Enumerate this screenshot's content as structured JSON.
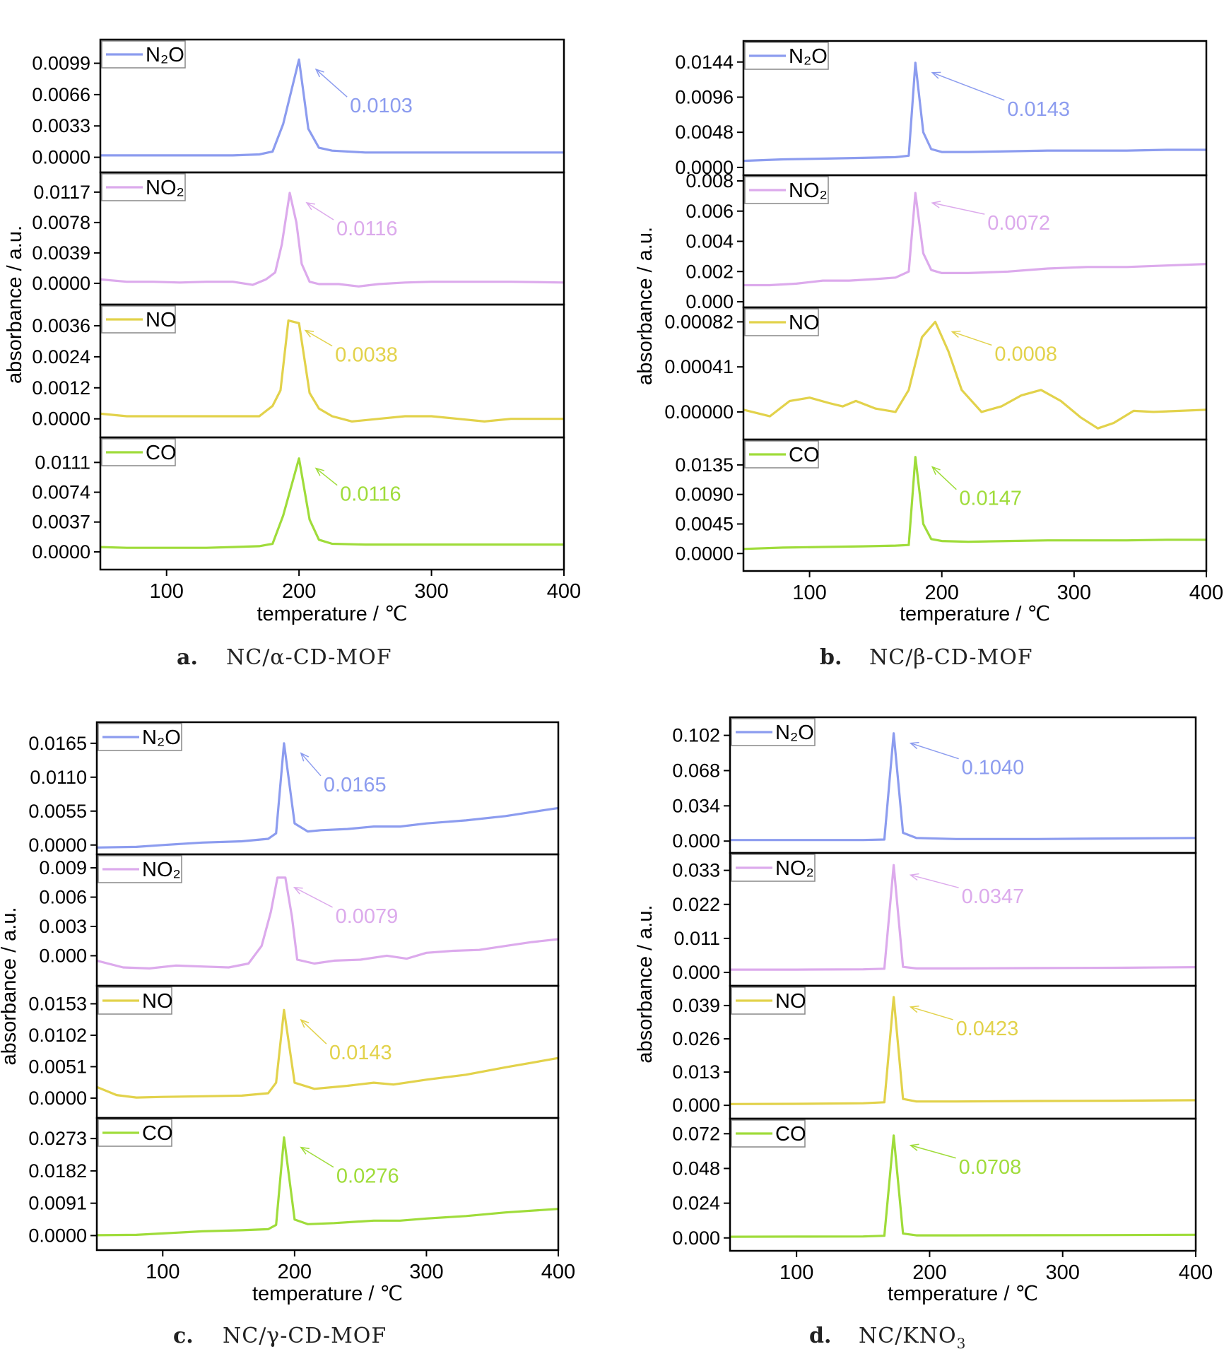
{
  "chart_data": [
    {
      "type": "line",
      "caption": {
        "letter": "a.",
        "text": "NC/α-CD-MOF"
      },
      "xlabel": "temperature / ℃",
      "ylabel": "absorbance / a.u.",
      "xlim": [
        50,
        400
      ],
      "xticks": [
        100,
        200,
        300,
        400
      ],
      "series": [
        {
          "name": "N₂O",
          "color": "#8c9cef",
          "ylim": [
            -0.001,
            0.0118
          ],
          "yticks": [
            "0.0099",
            "0.0066",
            "0.0033",
            "0.0000"
          ],
          "peak_label": "0.0103",
          "x": [
            50,
            70,
            90,
            110,
            130,
            150,
            170,
            180,
            188,
            200,
            207,
            215,
            225,
            250,
            300,
            350,
            400
          ],
          "y": [
            0.0002,
            0.0002,
            0.0002,
            0.0002,
            0.0002,
            0.0002,
            0.0003,
            0.0006,
            0.0035,
            0.0103,
            0.003,
            0.001,
            0.0007,
            0.0005,
            0.0005,
            0.0005,
            0.0005
          ]
        },
        {
          "name": "NO₂",
          "color": "#dcaaec",
          "ylim": [
            -0.002,
            0.0135
          ],
          "yticks": [
            "0.0117",
            "0.0078",
            "0.0039",
            "0.0000"
          ],
          "peak_label": "0.0116",
          "x": [
            50,
            70,
            90,
            110,
            130,
            150,
            165,
            175,
            182,
            187,
            193,
            198,
            202,
            208,
            215,
            230,
            245,
            260,
            280,
            300,
            330,
            360,
            400
          ],
          "y": [
            0.0005,
            0.0002,
            0.0002,
            0.0001,
            0.0002,
            0.0002,
            -0.0002,
            0.0005,
            0.0014,
            0.005,
            0.0116,
            0.0078,
            0.0025,
            0.0002,
            -0.0001,
            -0.0001,
            -0.0004,
            -0.0001,
            0.0001,
            0.0002,
            0.0002,
            0.0002,
            0.0001
          ]
        },
        {
          "name": "NO",
          "color": "#e2d24b",
          "ylim": [
            -0.0005,
            0.0042
          ],
          "yticks": [
            "0.0036",
            "0.0024",
            "0.0012",
            "0.0000"
          ],
          "peak_label": "0.0038",
          "x": [
            50,
            70,
            90,
            110,
            130,
            150,
            170,
            180,
            186,
            192,
            200,
            208,
            215,
            225,
            240,
            260,
            280,
            300,
            320,
            340,
            360,
            380,
            400
          ],
          "y": [
            0.0002,
            0.0001,
            0.0001,
            0.0001,
            0.0001,
            0.0001,
            0.0001,
            0.0005,
            0.0011,
            0.0038,
            0.0037,
            0.001,
            0.0004,
            0.0001,
            -0.0001,
            0.0,
            0.0001,
            0.0001,
            0.0,
            -0.0001,
            0.0,
            0.0,
            0.0
          ]
        },
        {
          "name": "CO",
          "color": "#9fdc3a",
          "ylim": [
            -0.0015,
            0.0135
          ],
          "yticks": [
            "0.0111",
            "0.0074",
            "0.0037",
            "0.0000"
          ],
          "peak_label": "0.0116",
          "x": [
            50,
            70,
            90,
            110,
            130,
            150,
            170,
            180,
            188,
            200,
            208,
            215,
            225,
            250,
            300,
            350,
            400
          ],
          "y": [
            0.0006,
            0.0005,
            0.0005,
            0.0005,
            0.0005,
            0.0006,
            0.0007,
            0.001,
            0.0045,
            0.0116,
            0.004,
            0.0015,
            0.001,
            0.0009,
            0.0009,
            0.0009,
            0.0009
          ]
        }
      ]
    },
    {
      "type": "line",
      "caption": {
        "letter": "b.",
        "text": "NC/β-CD-MOF"
      },
      "xlabel": "temperature / ℃",
      "ylabel": "absorbance / a.u.",
      "xlim": [
        50,
        400
      ],
      "xticks": [
        100,
        200,
        300,
        400
      ],
      "series": [
        {
          "name": "N₂O",
          "color": "#8c9cef",
          "ylim": [
            -0.0003,
            0.0165
          ],
          "yticks": [
            "0.0144",
            "0.0096",
            "0.0048",
            "0.0000"
          ],
          "peak_label": "0.0143",
          "x": [
            50,
            80,
            110,
            140,
            165,
            175,
            180,
            186,
            192,
            200,
            220,
            250,
            280,
            310,
            340,
            370,
            400
          ],
          "y": [
            0.0009,
            0.0011,
            0.0012,
            0.0013,
            0.0014,
            0.0016,
            0.0143,
            0.0048,
            0.0025,
            0.0021,
            0.0021,
            0.0022,
            0.0023,
            0.0023,
            0.0023,
            0.0024,
            0.0024
          ]
        },
        {
          "name": "NO₂",
          "color": "#dcaaec",
          "ylim": [
            0.0,
            0.008
          ],
          "yticks": [
            "0.008",
            "0.006",
            "0.004",
            "0.002",
            "0.000"
          ],
          "peak_label": "0.0072",
          "x": [
            50,
            70,
            90,
            110,
            130,
            150,
            165,
            175,
            180,
            186,
            192,
            200,
            220,
            250,
            280,
            310,
            340,
            370,
            400
          ],
          "y": [
            0.0011,
            0.0011,
            0.0012,
            0.0014,
            0.0014,
            0.0015,
            0.0016,
            0.002,
            0.0072,
            0.0032,
            0.0021,
            0.0019,
            0.0019,
            0.002,
            0.0022,
            0.0023,
            0.0023,
            0.0024,
            0.0025
          ]
        },
        {
          "name": "NO",
          "color": "#e2d24b",
          "ylim": [
            -0.0002,
            0.0009
          ],
          "yticks": [
            "0.00082",
            "0.00041",
            "0.00000"
          ],
          "peak_label": "0.0008",
          "x": [
            50,
            70,
            85,
            100,
            115,
            125,
            135,
            150,
            165,
            175,
            185,
            195,
            205,
            215,
            230,
            245,
            260,
            275,
            290,
            305,
            318,
            330,
            345,
            360,
            380,
            400
          ],
          "y": [
            2e-05,
            -4e-05,
            0.0001,
            0.00013,
            8e-05,
            5e-05,
            0.0001,
            3e-05,
            0.0,
            0.0002,
            0.00068,
            0.00082,
            0.00055,
            0.0002,
            0.0,
            5e-05,
            0.00015,
            0.0002,
            0.0001,
            -5e-05,
            -0.00015,
            -0.0001,
            1e-05,
            0.0,
            1e-05,
            2e-05
          ]
        },
        {
          "name": "CO",
          "color": "#9fdc3a",
          "ylim": [
            -0.0018,
            0.0165
          ],
          "yticks": [
            "0.0135",
            "0.0090",
            "0.0045",
            "0.0000"
          ],
          "peak_label": "0.0147",
          "x": [
            50,
            80,
            110,
            140,
            165,
            175,
            180,
            186,
            192,
            200,
            220,
            250,
            280,
            310,
            340,
            370,
            400
          ],
          "y": [
            0.0007,
            0.0009,
            0.001,
            0.0011,
            0.0012,
            0.0013,
            0.0147,
            0.0045,
            0.0022,
            0.0019,
            0.0018,
            0.0019,
            0.002,
            0.002,
            0.002,
            0.0021,
            0.0021
          ]
        }
      ]
    },
    {
      "type": "line",
      "caption": {
        "letter": "c.",
        "text": "NC/γ-CD-MOF"
      },
      "xlabel": "temperature / ℃",
      "ylabel": "absorbance / a.u.",
      "xlim": [
        50,
        400
      ],
      "xticks": [
        100,
        200,
        300,
        400
      ],
      "series": [
        {
          "name": "N₂O",
          "color": "#8c9cef",
          "ylim": [
            -0.0006,
            0.019
          ],
          "yticks": [
            "0.0165",
            "0.0110",
            "0.0055",
            "0.0000"
          ],
          "peak_label": "0.0165",
          "x": [
            50,
            80,
            100,
            130,
            160,
            180,
            186,
            192,
            200,
            210,
            220,
            240,
            260,
            280,
            300,
            330,
            360,
            400
          ],
          "y": [
            -0.0004,
            -0.0003,
            0.0,
            0.0004,
            0.0006,
            0.001,
            0.0019,
            0.0165,
            0.0035,
            0.0022,
            0.0024,
            0.0026,
            0.003,
            0.003,
            0.0035,
            0.004,
            0.0047,
            0.006
          ]
        },
        {
          "name": "NO₂",
          "color": "#dcaaec",
          "ylim": [
            -0.0025,
            0.0098
          ],
          "yticks": [
            "0.009",
            "0.006",
            "0.003",
            "0.000"
          ],
          "peak_label": "0.0079",
          "x": [
            50,
            70,
            90,
            110,
            130,
            150,
            165,
            175,
            182,
            187,
            193,
            198,
            202,
            215,
            230,
            250,
            270,
            285,
            300,
            320,
            340,
            360,
            380,
            400
          ],
          "y": [
            -0.0005,
            -0.0012,
            -0.0013,
            -0.001,
            -0.0011,
            -0.0012,
            -0.0008,
            0.001,
            0.0045,
            0.008,
            0.008,
            0.004,
            -0.0004,
            -0.0008,
            -0.0005,
            -0.0004,
            0.0,
            -0.0003,
            0.0003,
            0.0005,
            0.0006,
            0.001,
            0.0014,
            0.0017
          ]
        },
        {
          "name": "NO",
          "color": "#e2d24b",
          "ylim": [
            -0.0023,
            0.0173
          ],
          "yticks": [
            "0.0153",
            "0.0102",
            "0.0051",
            "0.0000"
          ],
          "peak_label": "0.0143",
          "x": [
            50,
            65,
            80,
            100,
            130,
            160,
            180,
            186,
            192,
            200,
            215,
            240,
            260,
            275,
            300,
            330,
            360,
            400
          ],
          "y": [
            0.0018,
            0.0005,
            0.0001,
            0.0002,
            0.0003,
            0.0004,
            0.0008,
            0.0025,
            0.0143,
            0.0025,
            0.0015,
            0.002,
            0.0025,
            0.0022,
            0.003,
            0.0038,
            0.005,
            0.0065
          ]
        },
        {
          "name": "CO",
          "color": "#9fdc3a",
          "ylim": [
            -0.0025,
            0.0315
          ],
          "yticks": [
            "0.0273",
            "0.0182",
            "0.0091",
            "0.0000"
          ],
          "peak_label": "0.0276",
          "x": [
            50,
            80,
            100,
            130,
            160,
            180,
            186,
            192,
            200,
            210,
            230,
            260,
            280,
            300,
            330,
            360,
            400
          ],
          "y": [
            0.0001,
            0.0002,
            0.0006,
            0.0012,
            0.0015,
            0.0018,
            0.003,
            0.0276,
            0.0045,
            0.0032,
            0.0035,
            0.0042,
            0.0042,
            0.0048,
            0.0055,
            0.0065,
            0.0075
          ]
        }
      ]
    },
    {
      "type": "line",
      "caption": {
        "letter": "d.",
        "text": "NC/KNO",
        "sub": "3"
      },
      "xlabel": "temperature / ℃",
      "ylabel": "absorbance / a.u.",
      "xlim": [
        50,
        400
      ],
      "xticks": [
        100,
        200,
        300,
        400
      ],
      "series": [
        {
          "name": "N₂O",
          "color": "#8c9cef",
          "ylim": [
            -0.006,
            0.114
          ],
          "yticks": [
            "0.102",
            "0.068",
            "0.034",
            "0.000"
          ],
          "peak_label": "0.1040",
          "x": [
            50,
            100,
            150,
            166,
            173,
            180,
            190,
            220,
            280,
            340,
            400
          ],
          "y": [
            0.001,
            0.001,
            0.001,
            0.0015,
            0.104,
            0.008,
            0.003,
            0.002,
            0.002,
            0.0025,
            0.003
          ]
        },
        {
          "name": "NO₂",
          "color": "#dcaaec",
          "ylim": [
            -0.0025,
            0.0368
          ],
          "yticks": [
            "0.033",
            "0.022",
            "0.011",
            "0.000"
          ],
          "peak_label": "0.0347",
          "x": [
            50,
            100,
            150,
            166,
            173,
            180,
            190,
            220,
            280,
            340,
            400
          ],
          "y": [
            0.0009,
            0.0009,
            0.001,
            0.0012,
            0.0347,
            0.0018,
            0.0013,
            0.0013,
            0.0014,
            0.0015,
            0.0017
          ]
        },
        {
          "name": "NO",
          "color": "#e2d24b",
          "ylim": [
            -0.003,
            0.0445
          ],
          "yticks": [
            "0.039",
            "0.026",
            "0.013",
            "0.000"
          ],
          "peak_label": "0.0423",
          "x": [
            50,
            100,
            150,
            166,
            173,
            180,
            190,
            220,
            280,
            340,
            400
          ],
          "y": [
            0.0005,
            0.0006,
            0.0008,
            0.0012,
            0.0423,
            0.0025,
            0.0015,
            0.0015,
            0.0017,
            0.0018,
            0.002
          ]
        },
        {
          "name": "CO",
          "color": "#9fdc3a",
          "ylim": [
            -0.005,
            0.0785
          ],
          "yticks": [
            "0.072",
            "0.048",
            "0.024",
            "0.000"
          ],
          "peak_label": "0.0708",
          "x": [
            50,
            100,
            150,
            166,
            173,
            180,
            190,
            220,
            280,
            340,
            400
          ],
          "y": [
            0.0008,
            0.0009,
            0.001,
            0.0015,
            0.0708,
            0.003,
            0.0018,
            0.0018,
            0.0019,
            0.002,
            0.0022
          ]
        }
      ]
    }
  ]
}
